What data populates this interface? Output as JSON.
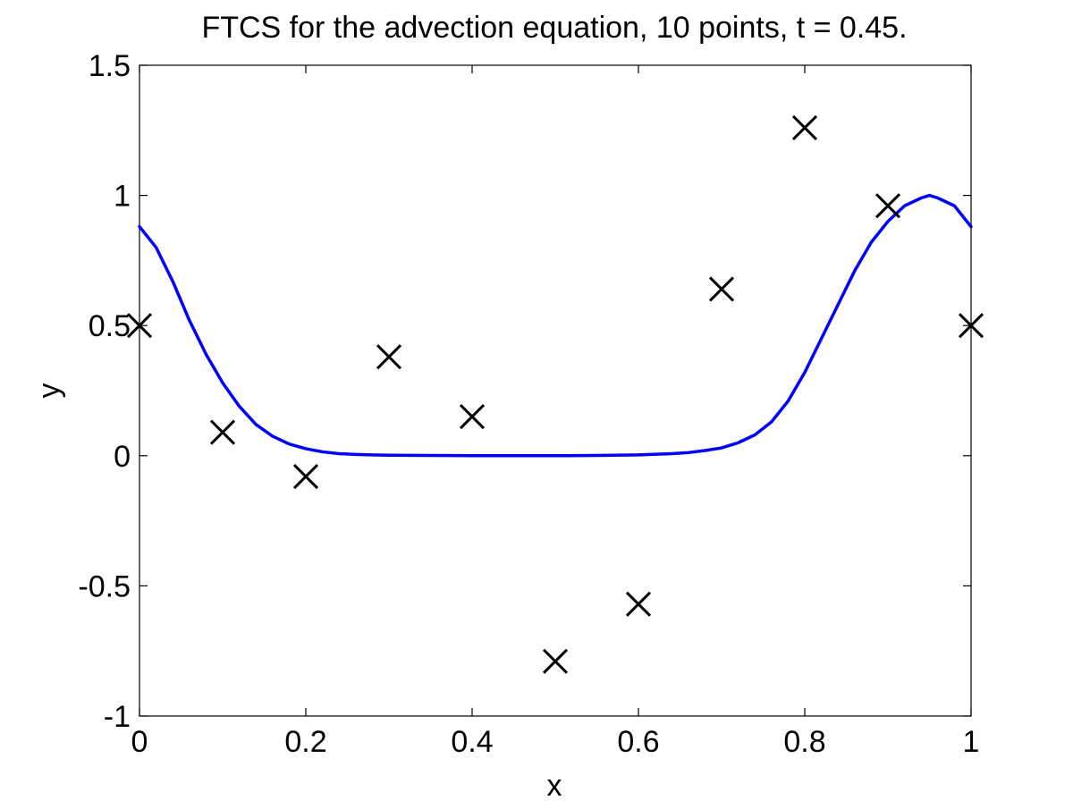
{
  "chart_data": {
    "type": "line",
    "title": "FTCS for the advection equation, 10 points, t = 0.45.",
    "xlabel": "x",
    "ylabel": "y",
    "xlim": [
      0,
      1
    ],
    "ylim": [
      -1,
      1.5
    ],
    "grid": false,
    "x_ticks": [
      "0",
      "0.2",
      "0.4",
      "0.6",
      "0.8",
      "1"
    ],
    "y_ticks": [
      "-1",
      "-0.5",
      "0",
      "0.5",
      "1",
      "1.5"
    ],
    "colors": {
      "curve": "#0000ff",
      "markers": "#000000"
    },
    "series": [
      {
        "style": "solid-line",
        "x": [
          0,
          0.02,
          0.04,
          0.06,
          0.08,
          0.1,
          0.12,
          0.14,
          0.16,
          0.18,
          0.2,
          0.22,
          0.24,
          0.26,
          0.28,
          0.3,
          0.35,
          0.4,
          0.45,
          0.5,
          0.55,
          0.6,
          0.64,
          0.66,
          0.68,
          0.7,
          0.72,
          0.74,
          0.76,
          0.78,
          0.8,
          0.82,
          0.84,
          0.86,
          0.88,
          0.9,
          0.92,
          0.94,
          0.95,
          0.96,
          0.98,
          1.0
        ],
        "values": [
          0.88,
          0.8,
          0.67,
          0.52,
          0.39,
          0.28,
          0.19,
          0.12,
          0.075,
          0.045,
          0.027,
          0.015,
          0.008,
          0.005,
          0.003,
          0.002,
          0.001,
          0.0,
          0.0,
          0.0,
          0.001,
          0.003,
          0.008,
          0.012,
          0.02,
          0.03,
          0.05,
          0.08,
          0.13,
          0.21,
          0.32,
          0.45,
          0.58,
          0.71,
          0.82,
          0.9,
          0.96,
          0.99,
          1.0,
          0.99,
          0.96,
          0.88
        ]
      },
      {
        "style": "x-markers",
        "x": [
          0,
          0.1,
          0.2,
          0.3,
          0.4,
          0.5,
          0.6,
          0.7,
          0.8,
          0.9,
          1.0
        ],
        "values": [
          0.5,
          0.09,
          -0.08,
          0.38,
          0.15,
          -0.79,
          -0.57,
          0.64,
          1.26,
          0.96,
          0.5
        ]
      }
    ]
  }
}
